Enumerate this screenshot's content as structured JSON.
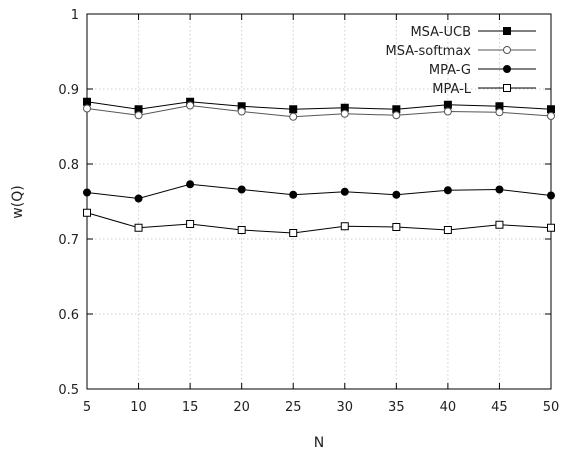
{
  "chart_data": {
    "type": "line",
    "title": "",
    "xlabel": "N",
    "ylabel": "w(Q)",
    "xlim": [
      5,
      50
    ],
    "ylim": [
      0.5,
      1
    ],
    "xticks": [
      "5",
      "10",
      "15",
      "20",
      "25",
      "30",
      "35",
      "40",
      "45",
      "50"
    ],
    "yticks": [
      "0.5",
      "0.6",
      "0.7",
      "0.8",
      "0.9",
      "1"
    ],
    "grid": true,
    "legend_position": "top-right",
    "x": [
      5,
      10,
      15,
      20,
      25,
      30,
      35,
      40,
      45,
      50
    ],
    "series": [
      {
        "name": "MSA-UCB",
        "marker": "filled-square",
        "color": "#000000",
        "values": [
          0.883,
          0.873,
          0.883,
          0.877,
          0.873,
          0.875,
          0.873,
          0.879,
          0.877,
          0.873
        ]
      },
      {
        "name": "MSA-softmax",
        "marker": "open-circle",
        "color": "#555555",
        "values": [
          0.874,
          0.865,
          0.878,
          0.87,
          0.863,
          0.867,
          0.865,
          0.87,
          0.869,
          0.864
        ]
      },
      {
        "name": "MPA-G",
        "marker": "filled-circle",
        "color": "#000000",
        "values": [
          0.762,
          0.754,
          0.773,
          0.766,
          0.759,
          0.763,
          0.759,
          0.765,
          0.766,
          0.758
        ]
      },
      {
        "name": "MPA-L",
        "marker": "open-square",
        "color": "#000000",
        "values": [
          0.735,
          0.715,
          0.72,
          0.712,
          0.708,
          0.717,
          0.716,
          0.712,
          0.719,
          0.715
        ]
      }
    ]
  }
}
